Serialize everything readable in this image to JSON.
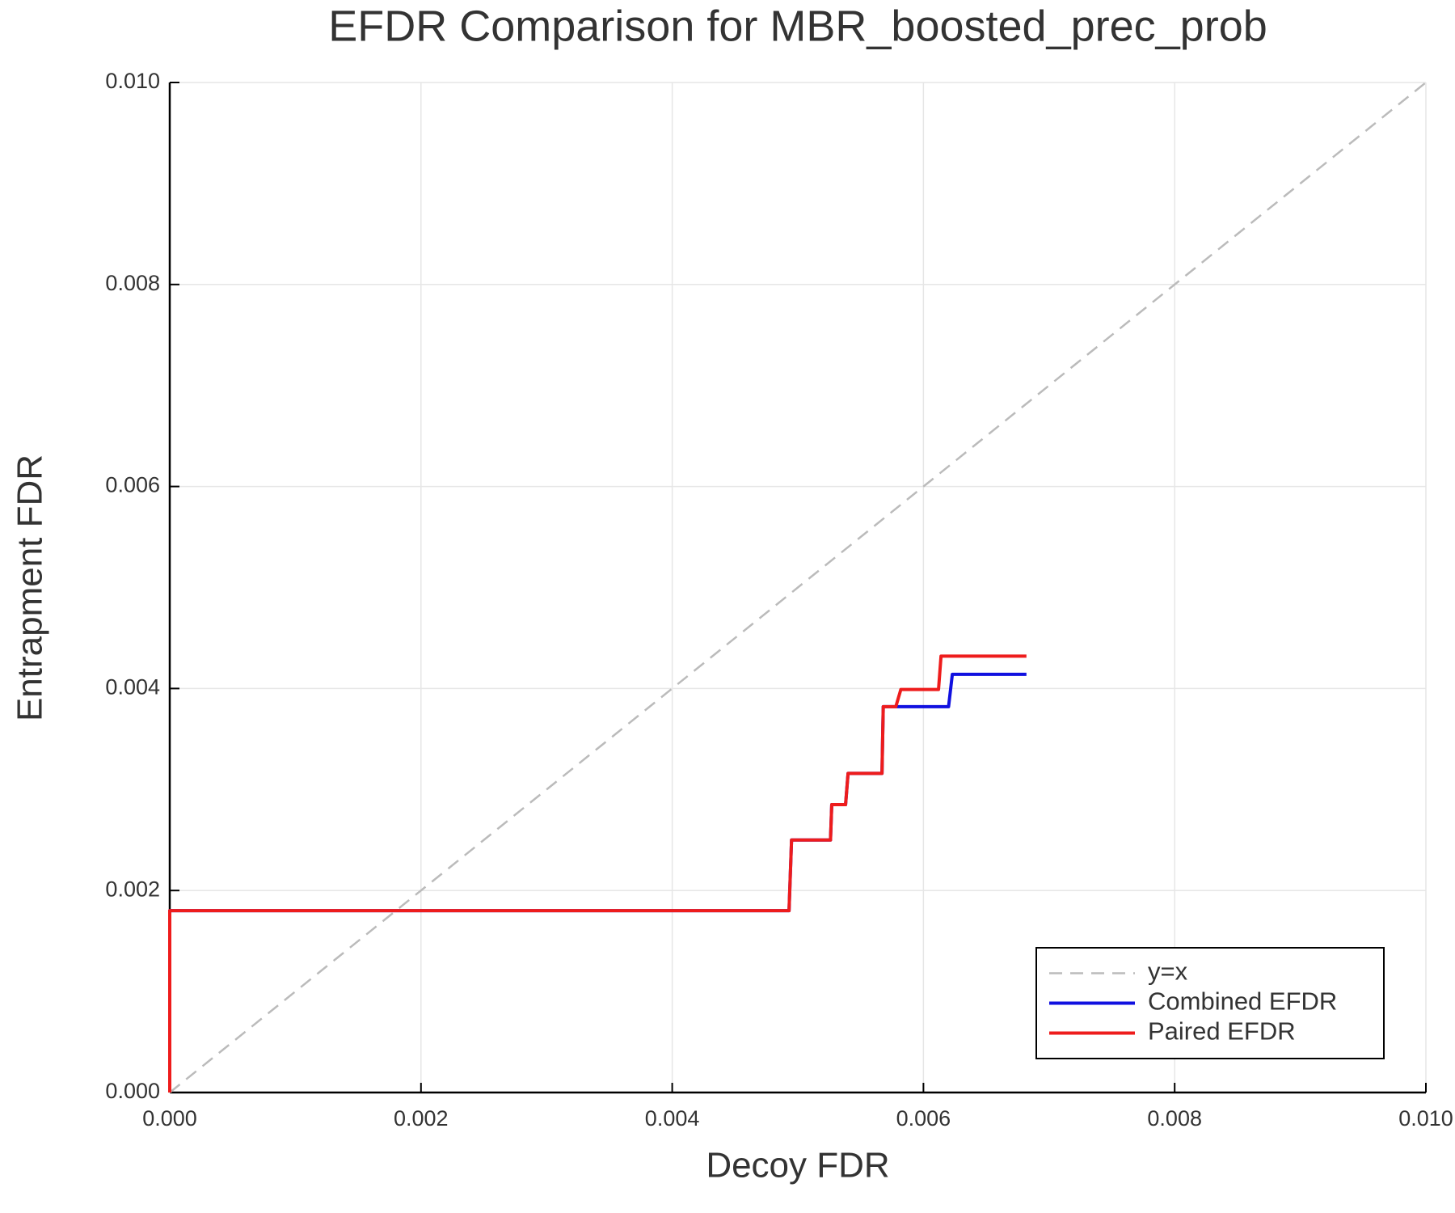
{
  "chart_data": {
    "type": "line",
    "title": "EFDR Comparison for MBR_boosted_prec_prob",
    "x_label": "Decoy FDR",
    "y_label": "Entrapment FDR",
    "xlim": [
      0,
      0.01
    ],
    "ylim": [
      0,
      0.01
    ],
    "xticks": [
      {
        "value": 0,
        "label": "0.000"
      },
      {
        "value": 0.002,
        "label": "0.002"
      },
      {
        "value": 0.004,
        "label": "0.004"
      },
      {
        "value": 0.006,
        "label": "0.006"
      },
      {
        "value": 0.008,
        "label": "0.008"
      },
      {
        "value": 0.01,
        "label": "0.010"
      }
    ],
    "yticks": [
      {
        "value": 0,
        "label": "0.000"
      },
      {
        "value": 0.002,
        "label": "0.002"
      },
      {
        "value": 0.004,
        "label": "0.004"
      },
      {
        "value": 0.006,
        "label": "0.006"
      },
      {
        "value": 0.008,
        "label": "0.008"
      },
      {
        "value": 0.01,
        "label": "0.010"
      }
    ],
    "grid": true,
    "legend": "lower right",
    "series": [
      {
        "name": "y=x",
        "color": "#bbbbbb",
        "line_style": "dashed",
        "x": [
          0,
          0.01
        ],
        "values": [
          0,
          0.01
        ]
      },
      {
        "name": "Combined EFDR",
        "color": "#1010e0",
        "line_style": "solid",
        "x": [
          0,
          0,
          0.00493,
          0.00495,
          0.00526,
          0.00527,
          0.00538,
          0.0054,
          0.00567,
          0.00568,
          0.0062,
          0.00623,
          0.00682
        ],
        "values": [
          0,
          0.0018,
          0.0018,
          0.0025,
          0.0025,
          0.00285,
          0.00285,
          0.00316,
          0.00316,
          0.00382,
          0.00382,
          0.00414,
          0.00414
        ]
      },
      {
        "name": "Paired EFDR",
        "color": "#ee1c1c",
        "line_style": "solid",
        "x": [
          0,
          0,
          0.00493,
          0.00495,
          0.00526,
          0.00527,
          0.00538,
          0.0054,
          0.00567,
          0.00568,
          0.00578,
          0.00582,
          0.00612,
          0.00614,
          0.00682
        ],
        "values": [
          0,
          0.0018,
          0.0018,
          0.0025,
          0.0025,
          0.00285,
          0.00285,
          0.00316,
          0.00316,
          0.00382,
          0.00382,
          0.00399,
          0.00399,
          0.00432,
          0.00432
        ]
      }
    ]
  }
}
